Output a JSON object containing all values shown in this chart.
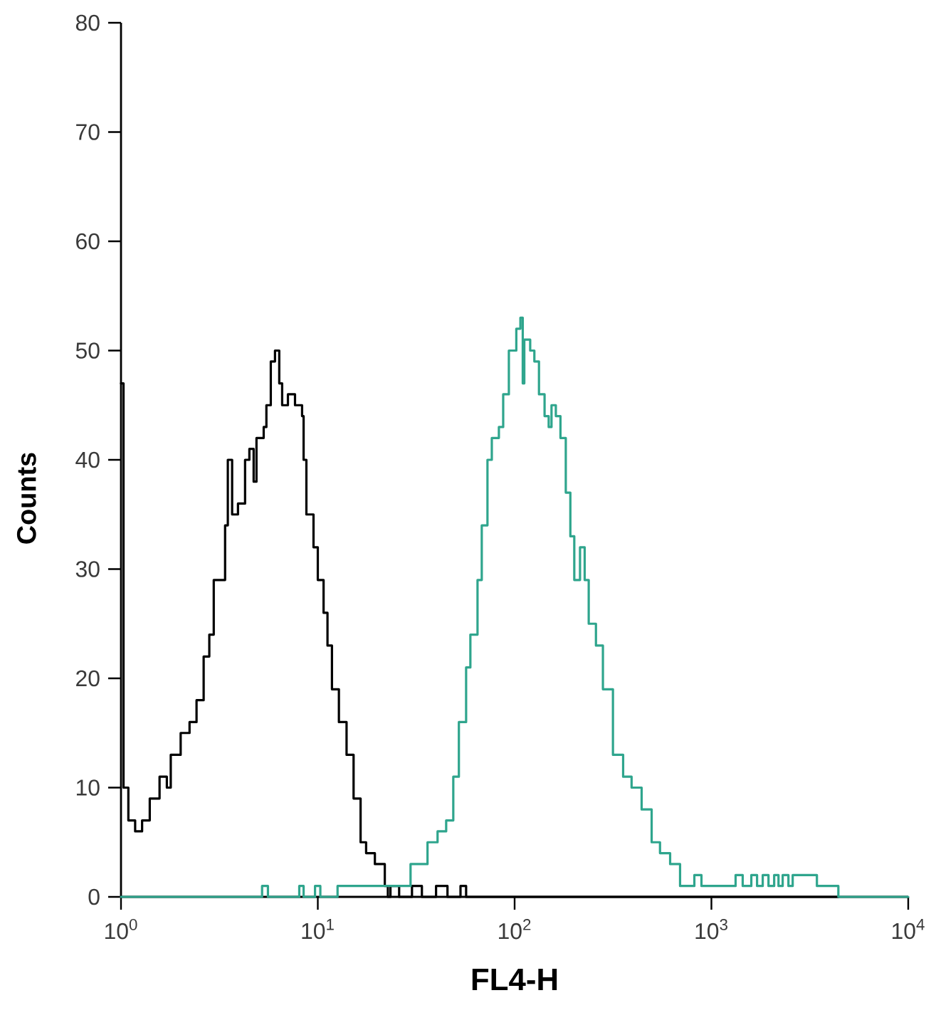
{
  "chart_data": {
    "type": "step",
    "xlabel": "FL4-H",
    "ylabel": "Counts",
    "log": "x",
    "xlim": [
      1,
      10000
    ],
    "xticks": [
      {
        "value": 1,
        "label": "10$^{0}$"
      },
      {
        "value": 10,
        "label": "10$^{1}$"
      },
      {
        "value": 100,
        "label": "10$^{2}$"
      },
      {
        "value": 1000,
        "label": "10$^{3}$"
      },
      {
        "value": 10000,
        "label": "10$^{4}$"
      }
    ],
    "ylim": [
      0,
      80
    ],
    "yticks": [
      0,
      10,
      20,
      30,
      40,
      50,
      60,
      70,
      80
    ],
    "series": [
      {
        "color": "#000000",
        "x": [
          1,
          1.03,
          1.09,
          1.18,
          1.28,
          1.4,
          1.57,
          1.71,
          1.79,
          2.01,
          2.23,
          2.42,
          2.63,
          2.81,
          2.96,
          3.22,
          3.38,
          3.49,
          3.67,
          3.93,
          4.27,
          4.49,
          4.72,
          4.88,
          5.31,
          5.48,
          5.77,
          6.06,
          6.37,
          6.59,
          7.05,
          7.66,
          8.32,
          8.47,
          8.75,
          9.51,
          10.0,
          10.7,
          11.2,
          11.8,
          12.8,
          14.0,
          15.2,
          16.5,
          17.6,
          19.5,
          21.9,
          22.7,
          23.4,
          25.9,
          30.1,
          33.8,
          39.9,
          45.6,
          53.1,
          56.7,
          4416
        ],
        "values": [
          47,
          10,
          7,
          6,
          7,
          9,
          11,
          10,
          13,
          15,
          16,
          18,
          22,
          24,
          29,
          29,
          34,
          40,
          35,
          36,
          40,
          41,
          38,
          42,
          43,
          45,
          49,
          50,
          47,
          45,
          46,
          45,
          44,
          40,
          35,
          32,
          29,
          26,
          23,
          19,
          16,
          13,
          9,
          5,
          4,
          3,
          1,
          0,
          1,
          0,
          1,
          0,
          1,
          0,
          1,
          0,
          0
        ]
      },
      {
        "color": "#2fa58d",
        "x": [
          1,
          5.21,
          5.58,
          8.05,
          8.47,
          9.68,
          10.3,
          12.6,
          29.6,
          36.1,
          40.6,
          44.9,
          48.8,
          52.1,
          56.7,
          59.6,
          64.8,
          68.1,
          72.8,
          76.6,
          83.2,
          87.5,
          93.5,
          102,
          107,
          110,
          112,
          120,
          126,
          133,
          142,
          149,
          154,
          162,
          171,
          182,
          192,
          201,
          215,
          227,
          238,
          259,
          281,
          316,
          356,
          393,
          442,
          497,
          548,
          617,
          693,
          819,
          890,
          1327,
          1442,
          1595,
          1706,
          1823,
          1950,
          2084,
          2192,
          2302,
          2462,
          2588,
          3436,
          4416,
          10000
        ],
        "values": [
          0,
          1,
          0,
          1,
          0,
          1,
          0,
          1,
          3,
          5,
          6,
          7,
          11,
          16,
          21,
          24,
          29,
          34,
          40,
          42,
          43,
          46,
          50,
          52,
          53,
          47,
          51,
          50,
          49,
          46,
          44,
          43,
          45,
          44,
          42,
          37,
          33,
          29,
          32,
          29,
          25,
          23,
          19,
          13,
          11,
          10,
          8,
          5,
          4,
          3,
          1,
          2,
          1,
          2,
          1,
          2,
          1,
          2,
          1,
          2,
          1,
          2,
          1,
          2,
          1,
          0,
          0
        ]
      }
    ]
  }
}
